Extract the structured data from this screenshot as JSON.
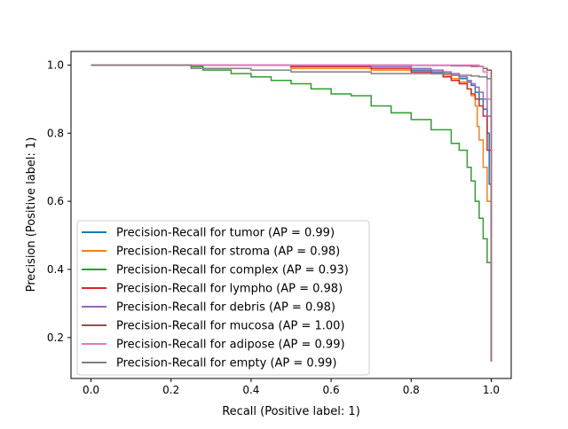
{
  "chart_data": {
    "type": "line",
    "title": "",
    "xlabel": "Recall (Positive label: 1)",
    "ylabel": "Precision (Positive label: 1)",
    "xlim": [
      -0.05,
      1.05
    ],
    "ylim": [
      0.08,
      1.04
    ],
    "xticks": [
      0.0,
      0.2,
      0.4,
      0.6,
      0.8,
      1.0
    ],
    "yticks": [
      0.2,
      0.4,
      0.6,
      0.8,
      1.0
    ],
    "xtick_labels": [
      "0.0",
      "0.2",
      "0.4",
      "0.6",
      "0.8",
      "1.0"
    ],
    "ytick_labels": [
      "0.2",
      "0.4",
      "0.6",
      "0.8",
      "1.0"
    ],
    "grid": false,
    "legend_position": "lower-left",
    "series": [
      {
        "name": "Precision-Recall for tumor (AP = 0.99)",
        "color": "#1f77b4",
        "x": [
          0,
          0.3,
          0.5,
          0.7,
          0.8,
          0.85,
          0.88,
          0.9,
          0.92,
          0.94,
          0.95,
          0.96,
          0.97,
          0.98,
          0.99,
          0.995,
          1.0,
          1.0
        ],
        "y": [
          1.0,
          1.0,
          0.995,
          0.99,
          0.985,
          0.98,
          0.975,
          0.97,
          0.96,
          0.95,
          0.94,
          0.92,
          0.9,
          0.87,
          0.8,
          0.65,
          0.35,
          0.13
        ]
      },
      {
        "name": "Precision-Recall for stroma (AP = 0.98)",
        "color": "#ff7f0e",
        "x": [
          0,
          0.3,
          0.5,
          0.7,
          0.8,
          0.85,
          0.88,
          0.9,
          0.92,
          0.94,
          0.95,
          0.96,
          0.965,
          0.97,
          0.98,
          0.99,
          1.0,
          1.0
        ],
        "y": [
          1.0,
          1.0,
          0.99,
          0.985,
          0.98,
          0.975,
          0.97,
          0.96,
          0.95,
          0.93,
          0.91,
          0.88,
          0.82,
          0.78,
          0.7,
          0.6,
          0.4,
          0.13
        ]
      },
      {
        "name": "Precision-Recall for complex (AP = 0.93)",
        "color": "#2ca02c",
        "x": [
          0,
          0.25,
          0.28,
          0.35,
          0.4,
          0.45,
          0.5,
          0.55,
          0.6,
          0.65,
          0.7,
          0.75,
          0.8,
          0.85,
          0.9,
          0.92,
          0.94,
          0.95,
          0.96,
          0.97,
          0.98,
          0.99,
          1.0,
          1.0
        ],
        "y": [
          1.0,
          0.995,
          0.985,
          0.975,
          0.965,
          0.955,
          0.945,
          0.93,
          0.915,
          0.91,
          0.88,
          0.86,
          0.84,
          0.81,
          0.77,
          0.75,
          0.7,
          0.66,
          0.6,
          0.55,
          0.49,
          0.42,
          0.36,
          0.35
        ]
      },
      {
        "name": "Precision-Recall for lympho (AP = 0.98)",
        "color": "#d62728",
        "x": [
          0,
          0.3,
          0.5,
          0.7,
          0.8,
          0.85,
          0.88,
          0.9,
          0.92,
          0.94,
          0.95,
          0.96,
          0.97,
          0.98,
          0.99,
          1.0,
          1.0
        ],
        "y": [
          1.0,
          1.0,
          0.995,
          0.99,
          0.98,
          0.975,
          0.965,
          0.955,
          0.945,
          0.93,
          0.915,
          0.9,
          0.88,
          0.85,
          0.75,
          0.5,
          0.13
        ]
      },
      {
        "name": "Precision-Recall for debris (AP = 0.98)",
        "color": "#9467bd",
        "x": [
          0,
          0.3,
          0.5,
          0.7,
          0.8,
          0.85,
          0.88,
          0.9,
          0.92,
          0.94,
          0.95,
          0.96,
          0.97,
          0.98,
          0.99,
          1.0,
          1.0
        ],
        "y": [
          1.0,
          1.0,
          0.998,
          0.995,
          0.99,
          0.985,
          0.98,
          0.975,
          0.965,
          0.955,
          0.945,
          0.935,
          0.92,
          0.9,
          0.85,
          0.7,
          0.13
        ]
      },
      {
        "name": "Precision-Recall for mucosa (AP = 1.00)",
        "color": "#8c564b",
        "x": [
          0,
          0.5,
          0.8,
          0.9,
          0.95,
          0.98,
          0.99,
          1.0,
          1.0
        ],
        "y": [
          1.0,
          1.0,
          0.999,
          0.998,
          0.996,
          0.99,
          0.985,
          0.97,
          0.13
        ]
      },
      {
        "name": "Precision-Recall for adipose (AP = 0.99)",
        "color": "#e377c2",
        "x": [
          0,
          0.5,
          0.8,
          0.9,
          0.95,
          0.97,
          0.98,
          0.99,
          1.0,
          1.0
        ],
        "y": [
          1.0,
          1.0,
          1.0,
          1.0,
          1.0,
          0.995,
          0.98,
          0.9,
          0.7,
          0.13
        ]
      },
      {
        "name": "Precision-Recall for empty (AP = 0.99)",
        "color": "#7f7f7f",
        "x": [
          0,
          0.25,
          0.3,
          0.4,
          0.5,
          0.6,
          0.7,
          0.8,
          0.9,
          0.95,
          0.97,
          0.98,
          0.99,
          1.0,
          1.0
        ],
        "y": [
          1.0,
          0.99,
          0.99,
          0.985,
          0.98,
          0.98,
          0.975,
          0.975,
          0.97,
          0.968,
          0.965,
          0.965,
          0.96,
          0.96,
          0.13
        ]
      }
    ]
  }
}
